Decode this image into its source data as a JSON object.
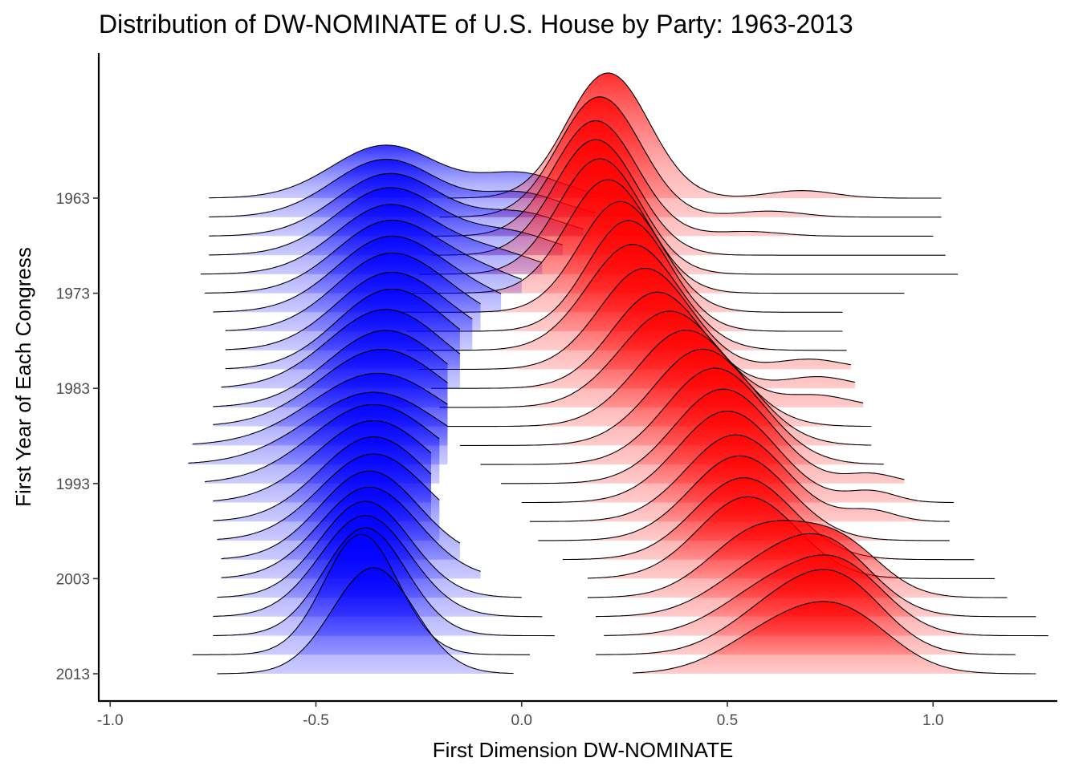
{
  "chart_data": {
    "type": "area",
    "subtype": "ridgeline",
    "title": "Distribution of DW-NOMINATE of U.S. House by Party: 1963-2013",
    "xlabel": "First Dimension DW-NOMINATE",
    "ylabel": "First Year of Each Congress",
    "xlim": [
      -1.0,
      1.3
    ],
    "x_ticks": [
      -1.0,
      -0.5,
      0.0,
      0.5,
      1.0
    ],
    "x_tick_labels": [
      "-1.0",
      "-0.5",
      "0.0",
      "0.5",
      "1.0"
    ],
    "y_ticks": [
      1963,
      1973,
      1983,
      1993,
      2003,
      2013
    ],
    "y_tick_labels": [
      "1963",
      "1973",
      "1983",
      "1993",
      "2003",
      "2013"
    ],
    "years": [
      1963,
      1965,
      1967,
      1969,
      1971,
      1973,
      1975,
      1977,
      1979,
      1981,
      1983,
      1985,
      1987,
      1989,
      1991,
      1993,
      1995,
      1997,
      1999,
      2001,
      2003,
      2005,
      2007,
      2009,
      2011,
      2013
    ],
    "grid": false,
    "legend": "none",
    "fill_gradient": "darker toward the peak of each ridge",
    "series": [
      {
        "party": "Democrat",
        "color": "#0000ff",
        "range_min": [
          -0.76,
          -0.76,
          -0.76,
          -0.76,
          -0.78,
          -0.77,
          -0.75,
          -0.72,
          -0.72,
          -0.72,
          -0.73,
          -0.75,
          -0.75,
          -0.8,
          -0.81,
          -0.77,
          -0.75,
          -0.75,
          -0.74,
          -0.73,
          -0.73,
          -0.74,
          -0.75,
          -0.75,
          -0.8,
          -0.74
        ],
        "range_max": [
          0.18,
          0.18,
          0.15,
          0.1,
          0.05,
          0.0,
          -0.05,
          -0.1,
          -0.12,
          -0.15,
          -0.15,
          -0.18,
          -0.18,
          -0.18,
          -0.18,
          -0.2,
          -0.22,
          -0.22,
          -0.2,
          -0.15,
          -0.1,
          0.0,
          0.05,
          0.08,
          0.02,
          -0.02
        ],
        "modes": [
          [
            [
              -0.33,
              1.0,
              0.13
            ],
            [
              0.0,
              0.45,
              0.1
            ]
          ],
          [
            [
              -0.33,
              1.0,
              0.13
            ],
            [
              0.0,
              0.4,
              0.1
            ]
          ],
          [
            [
              -0.32,
              1.0,
              0.13
            ],
            [
              0.0,
              0.35,
              0.1
            ]
          ],
          [
            [
              -0.32,
              1.0,
              0.13
            ],
            [
              -0.02,
              0.3,
              0.1
            ]
          ],
          [
            [
              -0.32,
              1.0,
              0.13
            ],
            [
              -0.05,
              0.25,
              0.1
            ]
          ],
          [
            [
              -0.32,
              1.0,
              0.13
            ],
            [
              -0.08,
              0.2,
              0.1
            ]
          ],
          [
            [
              -0.32,
              1.0,
              0.13
            ],
            [
              -0.1,
              0.15,
              0.1
            ]
          ],
          [
            [
              -0.32,
              1.0,
              0.13
            ],
            [
              -0.12,
              0.12,
              0.1
            ]
          ],
          [
            [
              -0.32,
              1.0,
              0.13
            ],
            [
              -0.12,
              0.1,
              0.1
            ]
          ],
          [
            [
              -0.32,
              1.0,
              0.13
            ],
            [
              -0.14,
              0.08,
              0.1
            ]
          ],
          [
            [
              -0.33,
              1.0,
              0.14
            ]
          ],
          [
            [
              -0.33,
              1.0,
              0.14
            ]
          ],
          [
            [
              -0.34,
              1.0,
              0.15
            ]
          ],
          [
            [
              -0.35,
              1.0,
              0.16
            ]
          ],
          [
            [
              -0.36,
              1.0,
              0.16
            ]
          ],
          [
            [
              -0.36,
              1.0,
              0.15
            ]
          ],
          [
            [
              -0.36,
              1.0,
              0.14
            ]
          ],
          [
            [
              -0.36,
              1.0,
              0.13
            ]
          ],
          [
            [
              -0.36,
              1.0,
              0.13
            ]
          ],
          [
            [
              -0.37,
              1.0,
              0.12
            ]
          ],
          [
            [
              -0.37,
              1.0,
              0.12
            ]
          ],
          [
            [
              -0.38,
              1.0,
              0.11
            ]
          ],
          [
            [
              -0.38,
              1.0,
              0.11
            ]
          ],
          [
            [
              -0.38,
              1.0,
              0.1
            ]
          ],
          [
            [
              -0.39,
              1.0,
              0.09
            ]
          ],
          [
            [
              -0.36,
              1.0,
              0.1
            ]
          ]
        ],
        "peak_height": [
          0.55,
          0.6,
          0.65,
          0.7,
          0.72,
          0.75,
          0.78,
          0.8,
          0.8,
          0.82,
          0.82,
          0.8,
          0.8,
          0.75,
          0.75,
          0.82,
          0.85,
          0.88,
          0.9,
          0.92,
          0.95,
          1.0,
          1.05,
          1.12,
          1.25,
          1.1
        ]
      },
      {
        "party": "Republican",
        "color": "#ff0000",
        "range_min": [
          -0.18,
          -0.2,
          -0.22,
          -0.22,
          -0.25,
          -0.28,
          -0.3,
          -0.28,
          -0.28,
          -0.25,
          -0.22,
          -0.2,
          -0.18,
          -0.15,
          -0.1,
          -0.05,
          0.0,
          0.02,
          0.04,
          0.1,
          0.16,
          0.16,
          0.18,
          0.2,
          0.18,
          0.27
        ],
        "range_max": [
          1.02,
          1.02,
          1.0,
          1.03,
          1.06,
          0.93,
          0.78,
          0.78,
          0.79,
          0.8,
          0.81,
          0.83,
          0.85,
          0.85,
          0.88,
          0.93,
          1.05,
          1.04,
          1.04,
          1.1,
          1.15,
          1.18,
          1.25,
          1.28,
          1.2,
          1.25
        ],
        "modes": [
          [
            [
              0.21,
              1.0,
              0.1
            ],
            [
              0.68,
              0.06,
              0.08
            ]
          ],
          [
            [
              0.19,
              1.0,
              0.1
            ],
            [
              0.6,
              0.05,
              0.08
            ]
          ],
          [
            [
              0.18,
              1.0,
              0.1
            ],
            [
              0.55,
              0.04,
              0.08
            ]
          ],
          [
            [
              0.18,
              1.0,
              0.1
            ]
          ],
          [
            [
              0.19,
              1.0,
              0.1
            ]
          ],
          [
            [
              0.21,
              1.0,
              0.1
            ]
          ],
          [
            [
              0.24,
              1.0,
              0.1
            ]
          ],
          [
            [
              0.26,
              1.0,
              0.1
            ]
          ],
          [
            [
              0.27,
              1.0,
              0.11
            ]
          ],
          [
            [
              0.3,
              1.0,
              0.11
            ],
            [
              0.7,
              0.1,
              0.08
            ]
          ],
          [
            [
              0.33,
              1.0,
              0.11
            ],
            [
              0.72,
              0.12,
              0.08
            ]
          ],
          [
            [
              0.36,
              1.0,
              0.12
            ],
            [
              0.72,
              0.12,
              0.08
            ]
          ],
          [
            [
              0.4,
              1.0,
              0.12
            ]
          ],
          [
            [
              0.44,
              1.0,
              0.12
            ]
          ],
          [
            [
              0.47,
              1.0,
              0.12
            ]
          ],
          [
            [
              0.49,
              1.0,
              0.12
            ],
            [
              0.85,
              0.1,
              0.06
            ]
          ],
          [
            [
              0.5,
              1.0,
              0.12
            ],
            [
              0.85,
              0.12,
              0.06
            ]
          ],
          [
            [
              0.52,
              1.0,
              0.12
            ],
            [
              0.85,
              0.12,
              0.06
            ]
          ],
          [
            [
              0.53,
              1.0,
              0.12
            ]
          ],
          [
            [
              0.54,
              1.0,
              0.12
            ]
          ],
          [
            [
              0.55,
              1.0,
              0.12
            ]
          ],
          [
            [
              0.58,
              1.0,
              0.12
            ],
            [
              0.78,
              0.7,
              0.1
            ]
          ],
          [
            [
              0.58,
              0.7,
              0.12
            ],
            [
              0.75,
              1.0,
              0.11
            ]
          ],
          [
            [
              0.6,
              0.7,
              0.12
            ],
            [
              0.78,
              1.0,
              0.11
            ]
          ],
          [
            [
              0.62,
              0.7,
              0.12
            ],
            [
              0.78,
              1.0,
              0.11
            ]
          ],
          [
            [
              0.6,
              0.6,
              0.12
            ],
            [
              0.78,
              1.0,
              0.12
            ]
          ]
        ],
        "peak_height": [
          1.3,
          1.25,
          1.2,
          1.2,
          1.2,
          1.18,
          1.15,
          1.15,
          1.1,
          1.05,
          1.0,
          1.0,
          1.0,
          1.0,
          1.0,
          0.98,
          0.95,
          0.9,
          0.88,
          0.85,
          0.85,
          0.7,
          0.65,
          0.65,
          0.65,
          0.6
        ]
      }
    ]
  }
}
